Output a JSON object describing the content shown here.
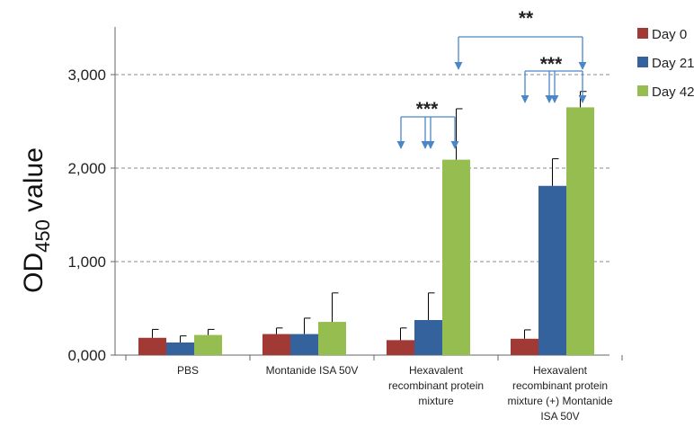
{
  "chart_data": {
    "type": "bar",
    "ylabel_main": "OD",
    "ylabel_sub": "450",
    "ylabel_rest": " value",
    "ylim": [
      0,
      3500
    ],
    "yticks": [
      0,
      1000,
      2000,
      3000
    ],
    "ytick_labels": [
      "0,000",
      "1,000",
      "2,000",
      "3,000"
    ],
    "grid": true,
    "legend_position": "right",
    "categories": [
      [
        "PBS"
      ],
      [
        "Montanide ISA 50V"
      ],
      [
        "Hexavalent",
        "recombinant protein",
        "mixture"
      ],
      [
        "Hexavalent",
        "recombinant protein",
        "mixture (+) Montanide",
        "ISA 50V"
      ]
    ],
    "series": [
      {
        "name": "Day 0",
        "color": "#a13a35",
        "values": [
          185,
          225,
          160,
          175
        ],
        "errors": [
          90,
          65,
          130,
          95
        ]
      },
      {
        "name": "Day 21",
        "color": "#33629c",
        "values": [
          135,
          225,
          375,
          1810
        ],
        "errors": [
          70,
          170,
          290,
          290
        ]
      },
      {
        "name": "Day 42",
        "color": "#95bd4f",
        "values": [
          215,
          355,
          2090,
          2650
        ],
        "errors": [
          60,
          310,
          545,
          170
        ]
      }
    ],
    "annotations": [
      {
        "label": "***"
      },
      {
        "label": "***"
      },
      {
        "label": "**"
      }
    ]
  }
}
